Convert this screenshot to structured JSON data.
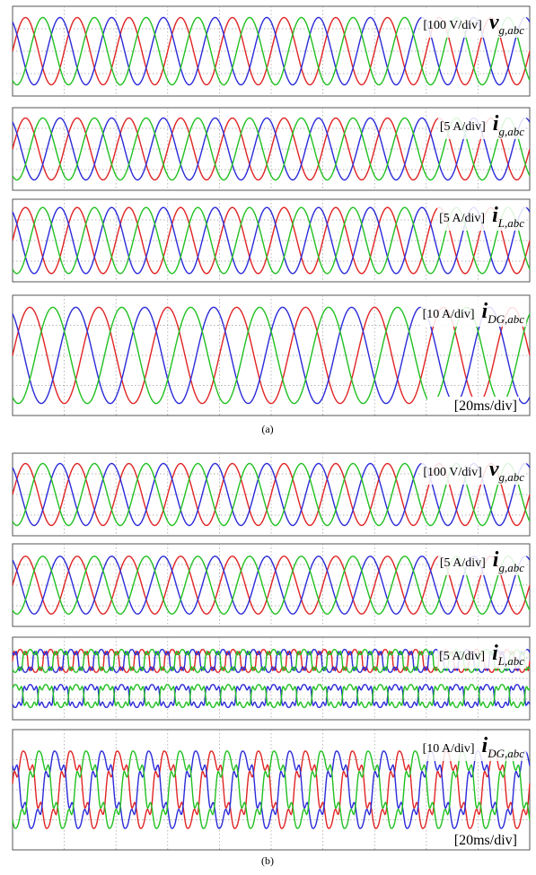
{
  "colors": {
    "phase_a": "#e02424",
    "phase_b": "#2a2ad8",
    "phase_c": "#21c021",
    "frame": "#555555",
    "grid": "#9a9a9a"
  },
  "chart_data": [
    {
      "group": "(a)",
      "type": "line",
      "time_scale": "[20ms/div]",
      "x_divisions": 10,
      "y_divisions": 4,
      "series_names": [
        "a",
        "b",
        "c"
      ],
      "panels": [
        {
          "scale": "[100 V/div]",
          "symbol": "v",
          "subscript": "g,abc",
          "waveform": "sine",
          "cycles_per_div": 1.0,
          "amplitude_div": 1.5,
          "harmonics": []
        },
        {
          "scale": "[5 A/div]",
          "symbol": "i",
          "subscript": "g,abc",
          "waveform": "sine",
          "cycles_per_div": 1.0,
          "amplitude_div": 1.5,
          "harmonics": []
        },
        {
          "scale": "[5 A/div]",
          "symbol": "i",
          "subscript": "L,abc",
          "waveform": "sine",
          "cycles_per_div": 1.0,
          "amplitude_div": 1.6,
          "harmonics": []
        },
        {
          "scale": "[10 A/div]",
          "symbol": "i",
          "subscript": "DG,abc",
          "waveform": "sine",
          "cycles_per_div": 0.75,
          "amplitude_div": 1.6,
          "harmonics": []
        }
      ]
    },
    {
      "group": "(b)",
      "type": "line",
      "time_scale": "[20ms/div]",
      "x_divisions": 10,
      "y_divisions": 4,
      "series_names": [
        "a",
        "b",
        "c"
      ],
      "panels": [
        {
          "scale": "[100 V/div]",
          "symbol": "v",
          "subscript": "g,abc",
          "waveform": "sine",
          "cycles_per_div": 1.0,
          "amplitude_div": 1.5,
          "harmonics": []
        },
        {
          "scale": "[5 A/div]",
          "symbol": "i",
          "subscript": "g,abc",
          "waveform": "sine",
          "cycles_per_div": 1.0,
          "amplitude_div": 1.4,
          "harmonics": []
        },
        {
          "scale": "[5 A/div]",
          "symbol": "i",
          "subscript": "L,abc",
          "waveform": "nonlinear",
          "cycles_per_div": 1.7,
          "amplitude_div": 0.7,
          "harmonics": [
            [
              5,
              0.25
            ],
            [
              7,
              0.12
            ]
          ]
        },
        {
          "scale": "[10 A/div]",
          "symbol": "i",
          "subscript": "DG,abc",
          "waveform": "distorted",
          "cycles_per_div": 1.1,
          "amplitude_div": 1.5,
          "harmonics": [
            [
              5,
              0.22
            ],
            [
              7,
              0.1
            ]
          ]
        }
      ]
    }
  ]
}
